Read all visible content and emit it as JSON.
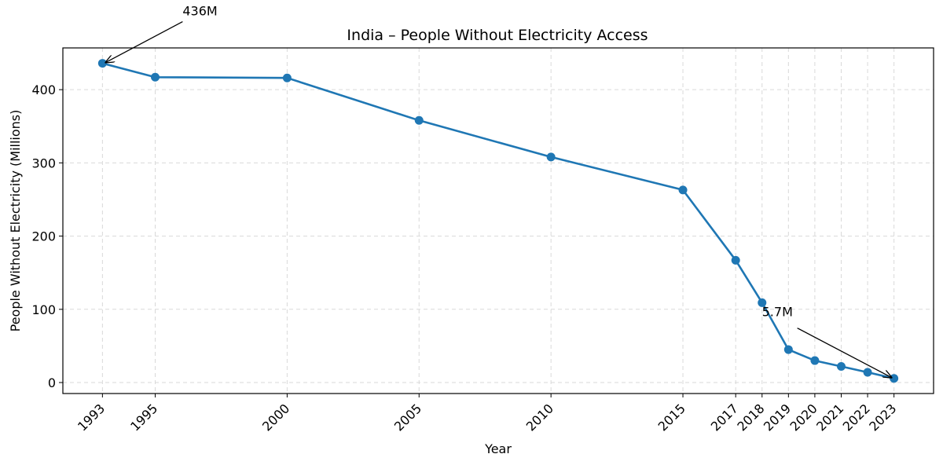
{
  "chart_data": {
    "type": "line",
    "title": "India – People Without Electricity Access",
    "xlabel": "Year",
    "ylabel": "People Without Electricity (Millions)",
    "x": [
      1993,
      1995,
      2000,
      2005,
      2010,
      2015,
      2017,
      2018,
      2019,
      2020,
      2021,
      2022,
      2023
    ],
    "series": [
      {
        "values": [
          436,
          417,
          416,
          358,
          308,
          263,
          167,
          109,
          45,
          30,
          22,
          14,
          5.7
        ]
      }
    ],
    "xlim": [
      1991.5,
      2024.5
    ],
    "ylim": [
      -15,
      457
    ],
    "yticks": [
      0,
      100,
      200,
      300,
      400
    ],
    "grid": true,
    "line_color": "#1f77b4",
    "annotations": [
      {
        "text": "436M",
        "x": 1993,
        "y": 436
      },
      {
        "text": "5.7M",
        "x": 2023,
        "y": 5.7
      }
    ]
  }
}
